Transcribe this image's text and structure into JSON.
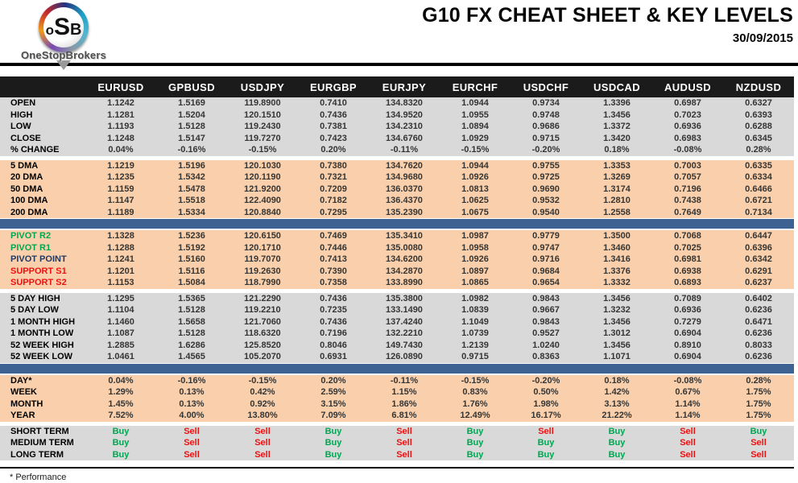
{
  "header": {
    "logo": {
      "letter_o": "o",
      "letter_s": "S",
      "letter_b": "B",
      "brand": "OneStopBrokers"
    },
    "title": "G10 FX CHEAT SHEET & KEY LEVELS",
    "date": "30/09/2015"
  },
  "colors": {
    "block_gray": "#d9d9d9",
    "block_peach": "#f9d0ab",
    "divider_blue": "#3e6292",
    "header_row_black": "#1b1b1b",
    "green": "#00a651",
    "red": "#ee1111",
    "navy": "#1f3864"
  },
  "table": {
    "columns": [
      "EURUSD",
      "GPBUSD",
      "USDJPY",
      "EURGBP",
      "EURJPY",
      "EURCHF",
      "USDCHF",
      "USDCAD",
      "AUDUSD",
      "NZDUSD"
    ],
    "blocks": [
      {
        "bg": "gray",
        "after": "gap",
        "rows": [
          {
            "label": "OPEN",
            "values": [
              "1.1242",
              "1.5169",
              "119.8900",
              "0.7410",
              "134.8320",
              "1.0944",
              "0.9734",
              "1.3396",
              "0.6987",
              "0.6327"
            ]
          },
          {
            "label": "HIGH",
            "values": [
              "1.1281",
              "1.5204",
              "120.1510",
              "0.7436",
              "134.9520",
              "1.0955",
              "0.9748",
              "1.3456",
              "0.7023",
              "0.6393"
            ]
          },
          {
            "label": "LOW",
            "values": [
              "1.1193",
              "1.5128",
              "119.2430",
              "0.7381",
              "134.2310",
              "1.0894",
              "0.9686",
              "1.3372",
              "0.6936",
              "0.6288"
            ]
          },
          {
            "label": "CLOSE",
            "values": [
              "1.1248",
              "1.5147",
              "119.7270",
              "0.7423",
              "134.6760",
              "1.0929",
              "0.9715",
              "1.3420",
              "0.6983",
              "0.6345"
            ]
          },
          {
            "label": "% CHANGE",
            "values": [
              "0.04%",
              "-0.16%",
              "-0.15%",
              "0.20%",
              "-0.11%",
              "-0.15%",
              "-0.20%",
              "0.18%",
              "-0.08%",
              "0.28%"
            ]
          }
        ]
      },
      {
        "bg": "peach",
        "after": "bar",
        "rows": [
          {
            "label": "5 DMA",
            "values": [
              "1.1219",
              "1.5196",
              "120.1030",
              "0.7380",
              "134.7620",
              "1.0944",
              "0.9755",
              "1.3353",
              "0.7003",
              "0.6335"
            ]
          },
          {
            "label": "20 DMA",
            "values": [
              "1.1235",
              "1.5342",
              "120.1190",
              "0.7321",
              "134.9680",
              "1.0926",
              "0.9725",
              "1.3269",
              "0.7057",
              "0.6334"
            ]
          },
          {
            "label": "50 DMA",
            "values": [
              "1.1159",
              "1.5478",
              "121.9200",
              "0.7209",
              "136.0370",
              "1.0813",
              "0.9690",
              "1.3174",
              "0.7196",
              "0.6466"
            ]
          },
          {
            "label": "100 DMA",
            "values": [
              "1.1147",
              "1.5518",
              "122.4090",
              "0.7182",
              "136.4370",
              "1.0625",
              "0.9532",
              "1.2810",
              "0.7438",
              "0.6721"
            ]
          },
          {
            "label": "200 DMA",
            "values": [
              "1.1189",
              "1.5334",
              "120.8840",
              "0.7295",
              "135.2390",
              "1.0675",
              "0.9540",
              "1.2558",
              "0.7649",
              "0.7134"
            ]
          }
        ]
      },
      {
        "bg": "peach",
        "after": "gap",
        "rows": [
          {
            "label": "PIVOT R2",
            "label_color": "green",
            "values": [
              "1.1328",
              "1.5236",
              "120.6150",
              "0.7469",
              "135.3410",
              "1.0987",
              "0.9779",
              "1.3500",
              "0.7068",
              "0.6447"
            ]
          },
          {
            "label": "PIVOT R1",
            "label_color": "green",
            "values": [
              "1.1288",
              "1.5192",
              "120.1710",
              "0.7446",
              "135.0080",
              "1.0958",
              "0.9747",
              "1.3460",
              "0.7025",
              "0.6396"
            ]
          },
          {
            "label": "PIVOT POINT",
            "label_color": "navy",
            "values": [
              "1.1241",
              "1.5160",
              "119.7070",
              "0.7413",
              "134.6200",
              "1.0926",
              "0.9716",
              "1.3416",
              "0.6981",
              "0.6342"
            ]
          },
          {
            "label": "SUPPORT S1",
            "label_color": "red",
            "values": [
              "1.1201",
              "1.5116",
              "119.2630",
              "0.7390",
              "134.2870",
              "1.0897",
              "0.9684",
              "1.3376",
              "0.6938",
              "0.6291"
            ]
          },
          {
            "label": "SUPPORT S2",
            "label_color": "red",
            "values": [
              "1.1153",
              "1.5084",
              "118.7990",
              "0.7358",
              "133.8990",
              "1.0865",
              "0.9654",
              "1.3332",
              "0.6893",
              "0.6237"
            ]
          }
        ]
      },
      {
        "bg": "gray",
        "after": "bar",
        "rows": [
          {
            "label": "5 DAY HIGH",
            "values": [
              "1.1295",
              "1.5365",
              "121.2290",
              "0.7436",
              "135.3800",
              "1.0982",
              "0.9843",
              "1.3456",
              "0.7089",
              "0.6402"
            ]
          },
          {
            "label": "5 DAY LOW",
            "values": [
              "1.1104",
              "1.5128",
              "119.2210",
              "0.7235",
              "133.1490",
              "1.0839",
              "0.9667",
              "1.3232",
              "0.6936",
              "0.6236"
            ]
          },
          {
            "label": "1 MONTH HIGH",
            "values": [
              "1.1460",
              "1.5658",
              "121.7060",
              "0.7436",
              "137.4240",
              "1.1049",
              "0.9843",
              "1.3456",
              "0.7279",
              "0.6471"
            ]
          },
          {
            "label": "1 MONTH LOW",
            "values": [
              "1.1087",
              "1.5128",
              "118.6320",
              "0.7196",
              "132.2210",
              "1.0739",
              "0.9527",
              "1.3012",
              "0.6904",
              "0.6236"
            ]
          },
          {
            "label": "52 WEEK HIGH",
            "values": [
              "1.2885",
              "1.6286",
              "125.8520",
              "0.8046",
              "149.7430",
              "1.2139",
              "1.0240",
              "1.3456",
              "0.8910",
              "0.8033"
            ]
          },
          {
            "label": "52 WEEK LOW",
            "values": [
              "1.0461",
              "1.4565",
              "105.2070",
              "0.6931",
              "126.0890",
              "0.9715",
              "0.8363",
              "1.1071",
              "0.6904",
              "0.6236"
            ]
          }
        ]
      },
      {
        "bg": "peach",
        "after": "gap",
        "rows": [
          {
            "label": "DAY*",
            "values": [
              "0.04%",
              "-0.16%",
              "-0.15%",
              "0.20%",
              "-0.11%",
              "-0.15%",
              "-0.20%",
              "0.18%",
              "-0.08%",
              "0.28%"
            ]
          },
          {
            "label": "WEEK",
            "values": [
              "1.29%",
              "0.13%",
              "0.42%",
              "2.59%",
              "1.15%",
              "0.83%",
              "0.50%",
              "1.42%",
              "0.67%",
              "1.75%"
            ]
          },
          {
            "label": "MONTH",
            "values": [
              "1.45%",
              "0.13%",
              "0.92%",
              "3.15%",
              "1.86%",
              "1.76%",
              "1.98%",
              "3.13%",
              "1.14%",
              "1.75%"
            ]
          },
          {
            "label": "YEAR",
            "values": [
              "7.52%",
              "4.00%",
              "13.80%",
              "7.09%",
              "6.81%",
              "12.49%",
              "16.17%",
              "21.22%",
              "1.14%",
              "1.75%"
            ]
          }
        ]
      },
      {
        "bg": "gray",
        "after": "none",
        "rows": [
          {
            "label": "SHORT TERM",
            "values": [
              "Buy",
              "Sell",
              "Sell",
              "Buy",
              "Sell",
              "Buy",
              "Sell",
              "Buy",
              "Sell",
              "Buy"
            ]
          },
          {
            "label": "MEDIUM TERM",
            "values": [
              "Buy",
              "Sell",
              "Sell",
              "Buy",
              "Sell",
              "Buy",
              "Buy",
              "Buy",
              "Sell",
              "Sell"
            ]
          },
          {
            "label": "LONG TERM",
            "values": [
              "Buy",
              "Sell",
              "Sell",
              "Buy",
              "Sell",
              "Buy",
              "Buy",
              "Buy",
              "Sell",
              "Sell"
            ]
          }
        ]
      }
    ]
  },
  "footnote": "* Performance"
}
